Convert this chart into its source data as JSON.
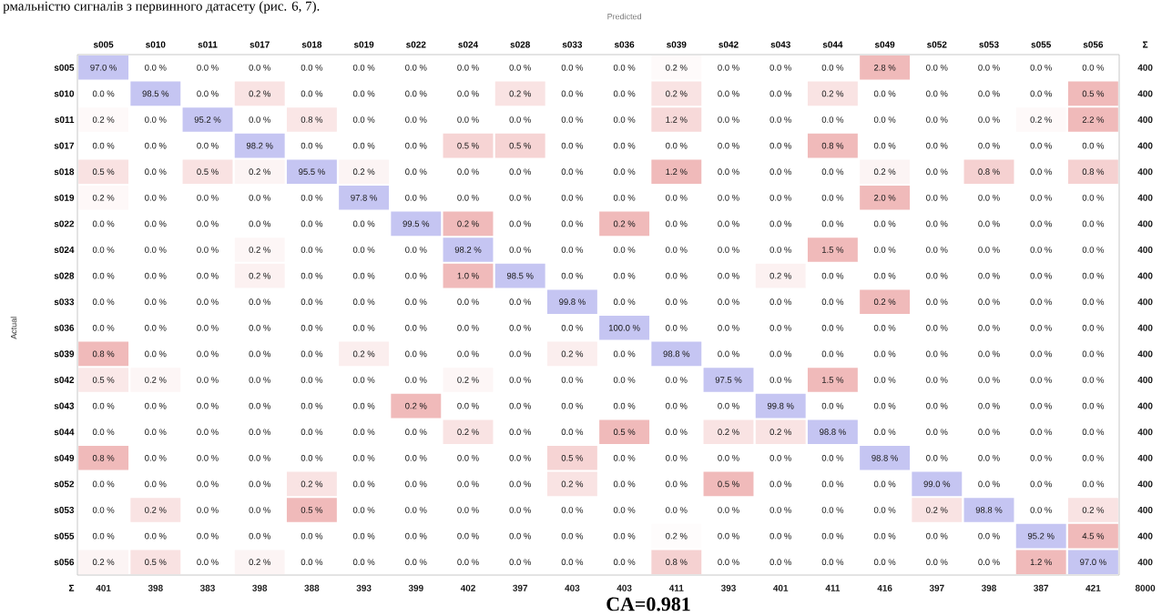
{
  "chart_data": {
    "type": "heatmap",
    "xlabel": "Predicted",
    "ylabel": "Actual",
    "annotations": [
      "рмальністю сигналів з первинного датасету (рис. 6, 7).",
      "CA=0.981"
    ],
    "categories": [
      "s005",
      "s010",
      "s011",
      "s017",
      "s018",
      "s019",
      "s022",
      "s024",
      "s028",
      "s033",
      "s036",
      "s039",
      "s042",
      "s043",
      "s044",
      "s049",
      "s052",
      "s053",
      "s055",
      "s056",
      "Σ"
    ],
    "y_categories": [
      "s005",
      "s010",
      "s011",
      "s017",
      "s018",
      "s019",
      "s022",
      "s024",
      "s028",
      "s033",
      "s036",
      "s039",
      "s042",
      "s043",
      "s044",
      "s049",
      "s052",
      "s053",
      "s055",
      "s056",
      "Σ"
    ],
    "cells": [
      [
        97.0,
        0,
        0,
        0,
        0,
        0,
        0,
        0,
        0,
        0,
        0,
        0.2,
        0,
        0,
        0,
        2.8,
        0,
        0,
        0,
        0,
        null
      ],
      [
        0,
        98.5,
        0,
        0.2,
        0,
        0,
        0,
        0,
        0.2,
        0,
        0,
        0.2,
        0,
        0,
        0.2,
        0,
        0,
        0,
        0,
        0.5,
        null
      ],
      [
        0.2,
        0,
        95.2,
        0,
        0.8,
        0,
        0,
        0,
        0,
        0,
        0,
        1.2,
        0,
        0,
        0,
        0,
        0,
        0,
        0.2,
        2.2,
        null
      ],
      [
        0,
        0,
        0,
        98.2,
        0,
        0,
        0,
        0.5,
        0.5,
        0,
        0,
        0,
        0,
        0,
        0.8,
        0,
        0,
        0,
        0,
        0,
        null
      ],
      [
        0.5,
        0,
        0.5,
        0.2,
        95.5,
        0.2,
        0,
        0,
        0,
        0,
        0,
        1.2,
        0,
        0,
        0,
        0.2,
        0,
        0.8,
        0,
        0.8,
        null
      ],
      [
        0.2,
        0,
        0,
        0,
        0,
        97.8,
        0,
        0,
        0,
        0,
        0,
        0,
        0,
        0,
        0,
        2.0,
        0,
        0,
        0,
        0,
        null
      ],
      [
        0,
        0,
        0,
        0,
        0,
        0,
        99.5,
        0.2,
        0,
        0,
        0.2,
        0,
        0,
        0,
        0,
        0,
        0,
        0,
        0,
        0,
        null
      ],
      [
        0,
        0,
        0,
        0.2,
        0,
        0,
        0,
        98.2,
        0,
        0,
        0,
        0,
        0,
        0,
        1.5,
        0,
        0,
        0,
        0,
        0,
        null
      ],
      [
        0,
        0,
        0,
        0.2,
        0,
        0,
        0,
        1.0,
        98.5,
        0,
        0,
        0,
        0,
        0.2,
        0,
        0,
        0,
        0,
        0,
        0,
        null
      ],
      [
        0,
        0,
        0,
        0,
        0,
        0,
        0,
        0,
        0,
        99.8,
        0,
        0,
        0,
        0,
        0,
        0.2,
        0,
        0,
        0,
        0,
        null
      ],
      [
        0,
        0,
        0,
        0,
        0,
        0,
        0,
        0,
        0,
        0,
        100.0,
        0,
        0,
        0,
        0,
        0,
        0,
        0,
        0,
        0,
        null
      ],
      [
        0.8,
        0,
        0,
        0,
        0,
        0.2,
        0,
        0,
        0,
        0.2,
        0,
        98.8,
        0,
        0,
        0,
        0,
        0,
        0,
        0,
        0,
        null
      ],
      [
        0.5,
        0.2,
        0,
        0,
        0,
        0,
        0,
        0.2,
        0,
        0,
        0,
        0,
        97.5,
        0,
        1.5,
        0,
        0,
        0,
        0,
        0,
        null
      ],
      [
        0,
        0,
        0,
        0,
        0,
        0,
        0.2,
        0,
        0,
        0,
        0,
        0,
        0,
        99.8,
        0,
        0,
        0,
        0,
        0,
        0,
        null
      ],
      [
        0,
        0,
        0,
        0,
        0,
        0,
        0,
        0.2,
        0,
        0,
        0.5,
        0,
        0.2,
        0.2,
        98.8,
        0,
        0,
        0,
        0,
        0,
        null
      ],
      [
        0.8,
        0,
        0,
        0,
        0,
        0,
        0,
        0,
        0,
        0.5,
        0,
        0,
        0,
        0,
        0,
        98.8,
        0,
        0,
        0,
        0,
        null
      ],
      [
        0,
        0,
        0,
        0,
        0.2,
        0,
        0,
        0,
        0,
        0.2,
        0,
        0,
        0.5,
        0,
        0,
        0,
        99.0,
        0,
        0,
        0,
        null
      ],
      [
        0,
        0.2,
        0,
        0,
        0.5,
        0,
        0,
        0,
        0,
        0,
        0,
        0,
        0,
        0,
        0,
        0,
        0.2,
        98.8,
        0,
        0.2,
        null
      ],
      [
        0,
        0,
        0,
        0,
        0,
        0,
        0,
        0,
        0,
        0,
        0,
        0.2,
        0,
        0,
        0,
        0,
        0,
        0,
        95.2,
        4.5,
        null
      ],
      [
        0.2,
        0.5,
        0,
        0.2,
        0,
        0,
        0,
        0,
        0,
        0,
        0,
        0.8,
        0,
        0,
        0,
        0,
        0,
        0,
        1.2,
        97.0,
        null
      ],
      [
        null,
        null,
        null,
        null,
        null,
        null,
        null,
        null,
        null,
        null,
        null,
        null,
        null,
        null,
        null,
        null,
        null,
        null,
        null,
        null,
        null
      ]
    ],
    "cell_labels": [
      [
        "97.0 %",
        "0.0 %",
        "0.0 %",
        "0.0 %",
        "0.0 %",
        "0.0 %",
        "0.0 %",
        "0.0 %",
        "0.0 %",
        "0.0 %",
        "0.0 %",
        "0.2 %",
        "0.0 %",
        "0.0 %",
        "0.0 %",
        "2.8 %",
        "0.0 %",
        "0.0 %",
        "0.0 %",
        "0.0 %",
        "400"
      ],
      [
        "0.0 %",
        "98.5 %",
        "0.0 %",
        "0.2 %",
        "0.0 %",
        "0.0 %",
        "0.0 %",
        "0.0 %",
        "0.2 %",
        "0.0 %",
        "0.0 %",
        "0.2 %",
        "0.0 %",
        "0.0 %",
        "0.2 %",
        "0.0 %",
        "0.0 %",
        "0.0 %",
        "0.0 %",
        "0.5 %",
        "400"
      ],
      [
        "0.2 %",
        "0.0 %",
        "95.2 %",
        "0.0 %",
        "0.8 %",
        "0.0 %",
        "0.0 %",
        "0.0 %",
        "0.0 %",
        "0.0 %",
        "0.0 %",
        "1.2 %",
        "0.0 %",
        "0.0 %",
        "0.0 %",
        "0.0 %",
        "0.0 %",
        "0.0 %",
        "0.2 %",
        "2.2 %",
        "400"
      ],
      [
        "0.0 %",
        "0.0 %",
        "0.0 %",
        "98.2 %",
        "0.0 %",
        "0.0 %",
        "0.0 %",
        "0.5 %",
        "0.5 %",
        "0.0 %",
        "0.0 %",
        "0.0 %",
        "0.0 %",
        "0.0 %",
        "0.8 %",
        "0.0 %",
        "0.0 %",
        "0.0 %",
        "0.0 %",
        "0.0 %",
        "400"
      ],
      [
        "0.5 %",
        "0.0 %",
        "0.5 %",
        "0.2 %",
        "95.5 %",
        "0.2 %",
        "0.0 %",
        "0.0 %",
        "0.0 %",
        "0.0 %",
        "0.0 %",
        "1.2 %",
        "0.0 %",
        "0.0 %",
        "0.0 %",
        "0.2 %",
        "0.0 %",
        "0.8 %",
        "0.0 %",
        "0.8 %",
        "400"
      ],
      [
        "0.2 %",
        "0.0 %",
        "0.0 %",
        "0.0 %",
        "0.0 %",
        "97.8 %",
        "0.0 %",
        "0.0 %",
        "0.0 %",
        "0.0 %",
        "0.0 %",
        "0.0 %",
        "0.0 %",
        "0.0 %",
        "0.0 %",
        "2.0 %",
        "0.0 %",
        "0.0 %",
        "0.0 %",
        "0.0 %",
        "400"
      ],
      [
        "0.0 %",
        "0.0 %",
        "0.0 %",
        "0.0 %",
        "0.0 %",
        "0.0 %",
        "99.5 %",
        "0.2 %",
        "0.0 %",
        "0.0 %",
        "0.2 %",
        "0.0 %",
        "0.0 %",
        "0.0 %",
        "0.0 %",
        "0.0 %",
        "0.0 %",
        "0.0 %",
        "0.0 %",
        "0.0 %",
        "400"
      ],
      [
        "0.0 %",
        "0.0 %",
        "0.0 %",
        "0.2 %",
        "0.0 %",
        "0.0 %",
        "0.0 %",
        "98.2 %",
        "0.0 %",
        "0.0 %",
        "0.0 %",
        "0.0 %",
        "0.0 %",
        "0.0 %",
        "1.5 %",
        "0.0 %",
        "0.0 %",
        "0.0 %",
        "0.0 %",
        "0.0 %",
        "400"
      ],
      [
        "0.0 %",
        "0.0 %",
        "0.0 %",
        "0.2 %",
        "0.0 %",
        "0.0 %",
        "0.0 %",
        "1.0 %",
        "98.5 %",
        "0.0 %",
        "0.0 %",
        "0.0 %",
        "0.0 %",
        "0.2 %",
        "0.0 %",
        "0.0 %",
        "0.0 %",
        "0.0 %",
        "0.0 %",
        "0.0 %",
        "400"
      ],
      [
        "0.0 %",
        "0.0 %",
        "0.0 %",
        "0.0 %",
        "0.0 %",
        "0.0 %",
        "0.0 %",
        "0.0 %",
        "0.0 %",
        "99.8 %",
        "0.0 %",
        "0.0 %",
        "0.0 %",
        "0.0 %",
        "0.0 %",
        "0.2 %",
        "0.0 %",
        "0.0 %",
        "0.0 %",
        "0.0 %",
        "400"
      ],
      [
        "0.0 %",
        "0.0 %",
        "0.0 %",
        "0.0 %",
        "0.0 %",
        "0.0 %",
        "0.0 %",
        "0.0 %",
        "0.0 %",
        "0.0 %",
        "100.0 %",
        "0.0 %",
        "0.0 %",
        "0.0 %",
        "0.0 %",
        "0.0 %",
        "0.0 %",
        "0.0 %",
        "0.0 %",
        "0.0 %",
        "400"
      ],
      [
        "0.8 %",
        "0.0 %",
        "0.0 %",
        "0.0 %",
        "0.0 %",
        "0.2 %",
        "0.0 %",
        "0.0 %",
        "0.0 %",
        "0.2 %",
        "0.0 %",
        "98.8 %",
        "0.0 %",
        "0.0 %",
        "0.0 %",
        "0.0 %",
        "0.0 %",
        "0.0 %",
        "0.0 %",
        "0.0 %",
        "400"
      ],
      [
        "0.5 %",
        "0.2 %",
        "0.0 %",
        "0.0 %",
        "0.0 %",
        "0.0 %",
        "0.0 %",
        "0.2 %",
        "0.0 %",
        "0.0 %",
        "0.0 %",
        "0.0 %",
        "97.5 %",
        "0.0 %",
        "1.5 %",
        "0.0 %",
        "0.0 %",
        "0.0 %",
        "0.0 %",
        "0.0 %",
        "400"
      ],
      [
        "0.0 %",
        "0.0 %",
        "0.0 %",
        "0.0 %",
        "0.0 %",
        "0.0 %",
        "0.2 %",
        "0.0 %",
        "0.0 %",
        "0.0 %",
        "0.0 %",
        "0.0 %",
        "0.0 %",
        "99.8 %",
        "0.0 %",
        "0.0 %",
        "0.0 %",
        "0.0 %",
        "0.0 %",
        "0.0 %",
        "400"
      ],
      [
        "0.0 %",
        "0.0 %",
        "0.0 %",
        "0.0 %",
        "0.0 %",
        "0.0 %",
        "0.0 %",
        "0.2 %",
        "0.0 %",
        "0.0 %",
        "0.5 %",
        "0.0 %",
        "0.2 %",
        "0.2 %",
        "98.8 %",
        "0.0 %",
        "0.0 %",
        "0.0 %",
        "0.0 %",
        "0.0 %",
        "400"
      ],
      [
        "0.8 %",
        "0.0 %",
        "0.0 %",
        "0.0 %",
        "0.0 %",
        "0.0 %",
        "0.0 %",
        "0.0 %",
        "0.0 %",
        "0.5 %",
        "0.0 %",
        "0.0 %",
        "0.0 %",
        "0.0 %",
        "0.0 %",
        "98.8 %",
        "0.0 %",
        "0.0 %",
        "0.0 %",
        "0.0 %",
        "400"
      ],
      [
        "0.0 %",
        "0.0 %",
        "0.0 %",
        "0.0 %",
        "0.2 %",
        "0.0 %",
        "0.0 %",
        "0.0 %",
        "0.0 %",
        "0.2 %",
        "0.0 %",
        "0.0 %",
        "0.5 %",
        "0.0 %",
        "0.0 %",
        "0.0 %",
        "99.0 %",
        "0.0 %",
        "0.0 %",
        "0.0 %",
        "400"
      ],
      [
        "0.0 %",
        "0.2 %",
        "0.0 %",
        "0.0 %",
        "0.5 %",
        "0.0 %",
        "0.0 %",
        "0.0 %",
        "0.0 %",
        "0.0 %",
        "0.0 %",
        "0.0 %",
        "0.0 %",
        "0.0 %",
        "0.0 %",
        "0.0 %",
        "0.2 %",
        "98.8 %",
        "0.0 %",
        "0.2 %",
        "400"
      ],
      [
        "0.0 %",
        "0.0 %",
        "0.0 %",
        "0.0 %",
        "0.0 %",
        "0.0 %",
        "0.0 %",
        "0.0 %",
        "0.0 %",
        "0.0 %",
        "0.0 %",
        "0.2 %",
        "0.0 %",
        "0.0 %",
        "0.0 %",
        "0.0 %",
        "0.0 %",
        "0.0 %",
        "95.2 %",
        "4.5 %",
        "400"
      ],
      [
        "0.2 %",
        "0.5 %",
        "0.0 %",
        "0.2 %",
        "0.0 %",
        "0.0 %",
        "0.0 %",
        "0.0 %",
        "0.0 %",
        "0.0 %",
        "0.0 %",
        "0.8 %",
        "0.0 %",
        "0.0 %",
        "0.0 %",
        "0.0 %",
        "0.0 %",
        "0.0 %",
        "1.2 %",
        "97.0 %",
        "400"
      ],
      [
        "401",
        "398",
        "383",
        "398",
        "388",
        "393",
        "399",
        "402",
        "397",
        "403",
        "403",
        "411",
        "393",
        "401",
        "411",
        "416",
        "397",
        "398",
        "387",
        "421",
        "8000"
      ]
    ]
  }
}
